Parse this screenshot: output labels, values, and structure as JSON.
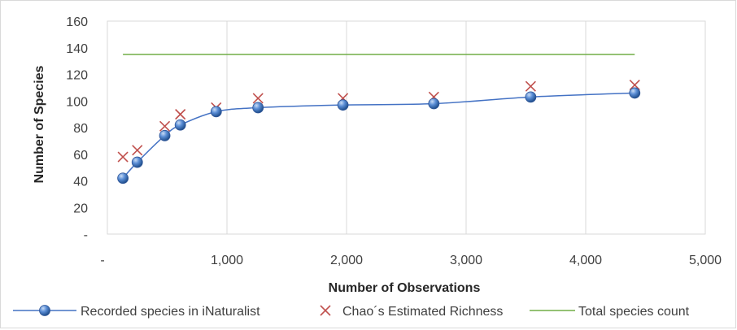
{
  "chart_data": {
    "type": "scatter",
    "xlabel": "Number of Observations",
    "ylabel": "Number of Species",
    "xlim": [
      0,
      5000
    ],
    "ylim": [
      0,
      160
    ],
    "x_ticks": [
      0,
      1000,
      2000,
      3000,
      4000,
      5000
    ],
    "x_tick_labels": [
      "-",
      "1,000",
      "2,000",
      "3,000",
      "4,000",
      "5,000"
    ],
    "y_ticks": [
      0,
      20,
      40,
      60,
      80,
      100,
      120,
      140,
      160
    ],
    "y_tick_labels": [
      "-",
      "20",
      "40",
      "60",
      "80",
      "100",
      "120",
      "140",
      "160"
    ],
    "grid": "vertical",
    "legend_position": "bottom",
    "series": [
      {
        "name": "Recorded species in iNaturalist",
        "style": "line-with-spheres",
        "color": "#4472c4",
        "x": [
          130,
          250,
          480,
          610,
          910,
          1260,
          1970,
          2730,
          3540,
          4410
        ],
        "y": [
          42,
          54,
          74,
          82,
          92,
          95,
          97,
          98,
          103,
          106
        ]
      },
      {
        "name": "Chao´s Estimated Richness",
        "style": "x-markers",
        "color": "#c0504d",
        "x": [
          130,
          250,
          480,
          610,
          910,
          1260,
          1970,
          2730,
          3540,
          4410
        ],
        "y": [
          58,
          63,
          81,
          90,
          95,
          102,
          102,
          103,
          111,
          112
        ]
      },
      {
        "name": "Total species count",
        "style": "line",
        "color": "#70ad47",
        "x": [
          130,
          4410
        ],
        "y": [
          135,
          135
        ]
      }
    ]
  }
}
